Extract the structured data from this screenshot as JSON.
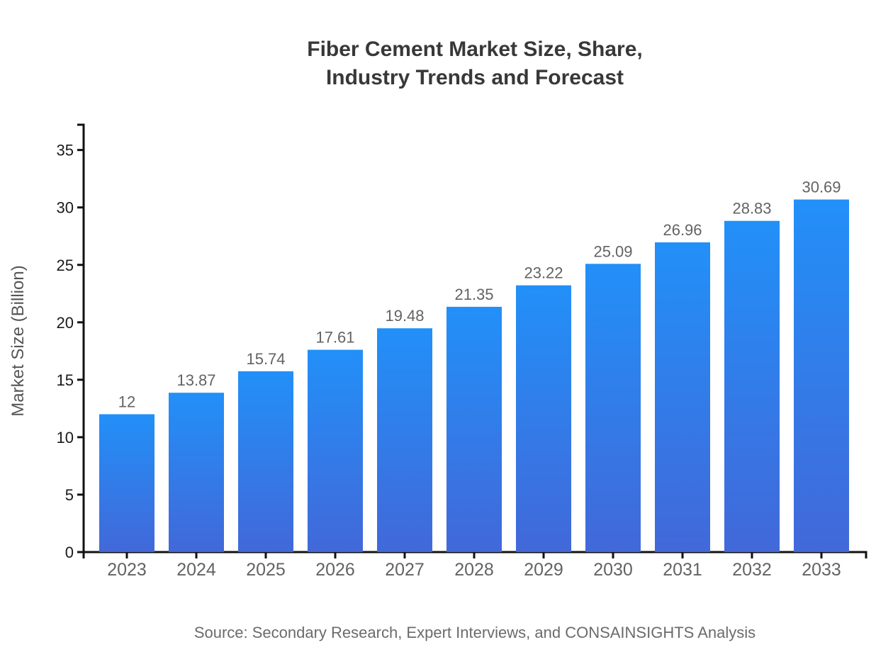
{
  "page": {
    "title_lines": [
      "Fiber Cement Market Size, Share,",
      "Industry Trends and Forecast"
    ],
    "source_note": "Source: Secondary Research, Expert Interviews, and CONSAINSIGHTS Analysis"
  },
  "chart_data": {
    "type": "bar",
    "title": "Fiber Cement Market Size, Share, Industry Trends and Forecast",
    "categories": [
      "2023",
      "2024",
      "2025",
      "2026",
      "2027",
      "2028",
      "2029",
      "2030",
      "2031",
      "2032",
      "2033"
    ],
    "values": [
      12,
      13.87,
      15.74,
      17.61,
      19.48,
      21.35,
      23.22,
      25.09,
      26.96,
      28.83,
      30.69
    ],
    "bar_value_labels": [
      "12",
      "13.87",
      "15.74",
      "17.61",
      "19.48",
      "21.35",
      "23.22",
      "25.09",
      "26.96",
      "28.83",
      "30.69"
    ],
    "xlabel": "",
    "ylabel": "Market Size (Billion)",
    "y_ticks": [
      0,
      5,
      10,
      15,
      20,
      25,
      30,
      35
    ],
    "ylim": [
      0,
      37.2
    ],
    "grid": false,
    "legend": "none",
    "colors": {
      "bar_gradient_top": "#2290f8",
      "bar_gradient_bottom": "#4268d9",
      "axis": "#111111",
      "y_tick_label": "#1a1a1a",
      "x_tick_label": "#636363",
      "value_label": "#636363",
      "title": "#383838",
      "ylabel": "#555555",
      "source": "#6b6b6b",
      "background": "#ffffff"
    }
  }
}
